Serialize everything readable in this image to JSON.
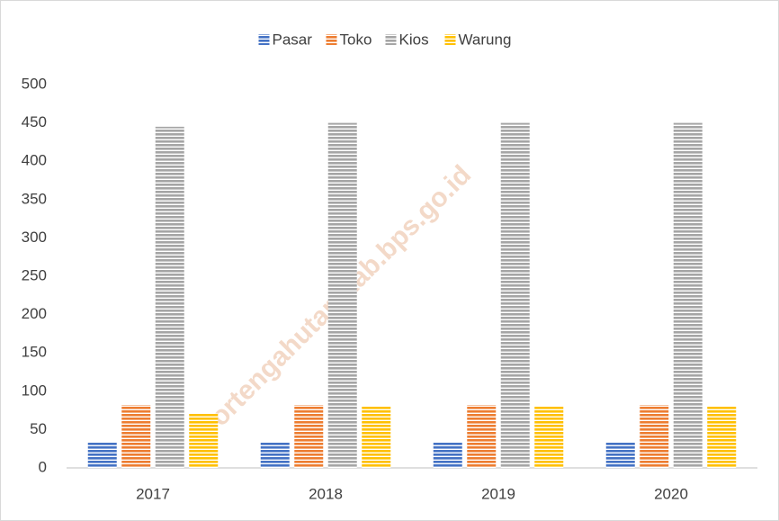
{
  "chart_data": {
    "type": "bar",
    "categories": [
      "2017",
      "2018",
      "2019",
      "2020"
    ],
    "series": [
      {
        "name": "Pasar",
        "color": "#4472c4",
        "values": [
          33,
          33,
          33,
          33
        ]
      },
      {
        "name": "Toko",
        "color": "#ed7d31",
        "values": [
          82,
          82,
          82,
          82
        ]
      },
      {
        "name": "Kios",
        "color": "#a5a5a5",
        "values": [
          445,
          450,
          450,
          450
        ]
      },
      {
        "name": "Warung",
        "color": "#ffc000",
        "values": [
          71,
          80,
          80,
          80
        ]
      }
    ],
    "ylim": [
      0,
      500
    ],
    "yticks": [
      0,
      50,
      100,
      150,
      200,
      250,
      300,
      350,
      400,
      450,
      500
    ],
    "grid": false,
    "legend": "top",
    "pattern": "horizontal-stripes",
    "watermark": "ortengahutarakab.bps.go.id"
  }
}
